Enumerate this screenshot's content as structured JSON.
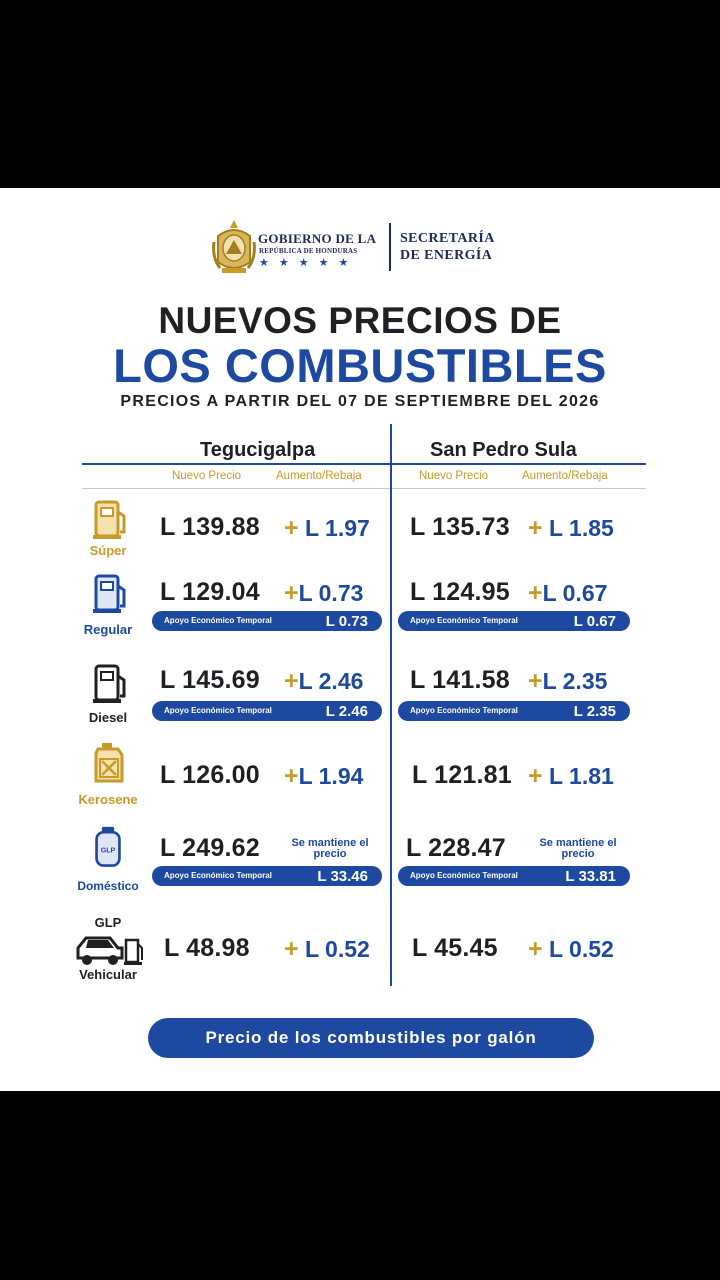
{
  "header": {
    "gov_name": "GOBIERNO DE LA",
    "gov_sub": "REPÚBLICA DE HONDURAS",
    "gov_stars": "★★★★★",
    "secretaria_line1": "SECRETARÍA",
    "secretaria_line2": "DE ENERGÍA",
    "title_line1": "NUEVOS PRECIOS DE",
    "title_line2": "LOS COMBUSTIBLES",
    "subtitle": "PRECIOS A PARTIR DEL 07 DE SEPTIEMBRE DEL 2026"
  },
  "table": {
    "cities": [
      "Tegucigalpa",
      "San Pedro Sula"
    ],
    "col_new_price": "Nuevo Precio",
    "col_change": "Aumento/Rebaja",
    "support_label": "Apoyo Económico Temporal",
    "plus_sign": "+",
    "rows": [
      {
        "name": "Súper",
        "tg_price": "L 139.88",
        "tg_change": "L 1.97",
        "sps_price": "L 135.73",
        "sps_change": "L 1.85"
      },
      {
        "name": "Regular",
        "tg_price": "L 129.04",
        "tg_change": "L 0.73",
        "sps_price": "L 124.95",
        "sps_change": "L 0.67",
        "tg_support": "L 0.73",
        "sps_support": "L 0.67"
      },
      {
        "name": "Diesel",
        "tg_price": "L 145.69",
        "tg_change": "L 2.46",
        "sps_price": "L 141.58",
        "sps_change": "L 2.35",
        "tg_support": "L 2.46",
        "sps_support": "L 2.35"
      },
      {
        "name": "Kerosene",
        "tg_price": "L 126.00",
        "tg_change": "L 1.94",
        "sps_price": "L 121.81",
        "sps_change": "L 1.81"
      },
      {
        "name": "Doméstico",
        "icon_label": "GLP",
        "tg_price": "L 249.62",
        "tg_note": "Se mantiene el precio",
        "sps_price": "L 228.47",
        "sps_note": "Se mantiene el precio",
        "tg_support": "L 33.46",
        "sps_support": "L 33.81"
      },
      {
        "name_top": "GLP",
        "name": "Vehicular",
        "tg_price": "L 48.98",
        "tg_change": "L 0.52",
        "sps_price": "L 45.45",
        "sps_change": "L 0.52"
      }
    ]
  },
  "footer": "Precio de los combustibles por galón",
  "colors": {
    "blue": "#1d4aa0",
    "gold": "#c89a2a",
    "dark": "#1f2024",
    "background": "#000000"
  },
  "icons": [
    "honduras-seal-icon",
    "fuel-pump-icon",
    "jerrycan-icon",
    "gas-cylinder-icon",
    "car-pump-icon"
  ]
}
